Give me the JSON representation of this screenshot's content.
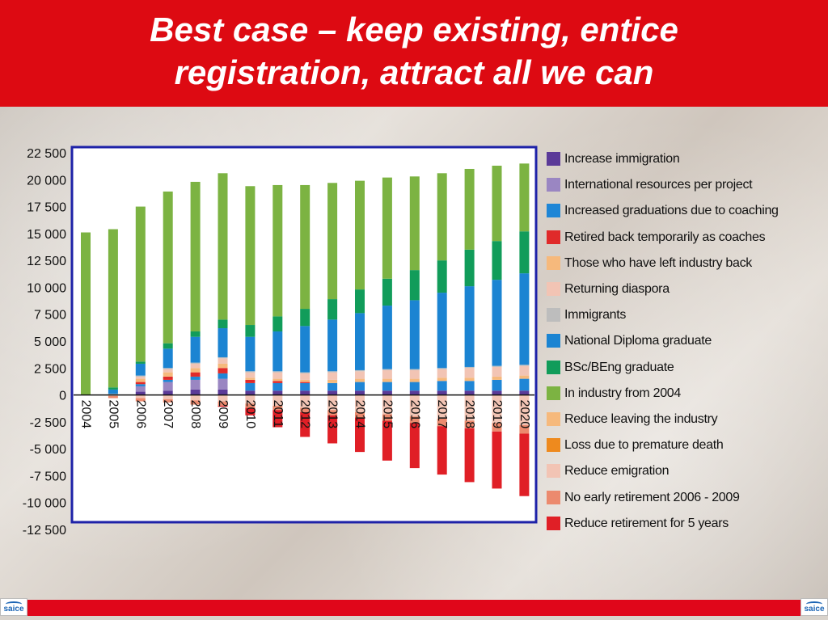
{
  "title": "Best case – keep existing, entice\nregistration, attract all we can",
  "logo_text": "saice",
  "chart_data": {
    "type": "bar",
    "stacked": true,
    "categories": [
      "2004",
      "2005",
      "2006",
      "2007",
      "2008",
      "2009",
      "2010",
      "2011",
      "2012",
      "2013",
      "2014",
      "2015",
      "2016",
      "2017",
      "2018",
      "2019",
      "2020"
    ],
    "ylim": [
      -12500,
      22500
    ],
    "yticks": [
      22500,
      20000,
      17500,
      15000,
      12500,
      10000,
      7500,
      5000,
      2500,
      0,
      -2500,
      -5000,
      -7500,
      -10000,
      -12500
    ],
    "ytick_labels": [
      "22 500",
      "20 000",
      "17 500",
      "15 000",
      "12 500",
      "10 000",
      "7 500",
      "5 000",
      "2 500",
      "0",
      "-2 500",
      "-5 000",
      "-7 500",
      "-10 000",
      "-12 500"
    ],
    "grid": false,
    "legend_position": "right",
    "series": [
      {
        "name": "Increase immigration",
        "color": "#5b3a98",
        "sign": "positive",
        "values": [
          0,
          0,
          300,
          400,
          500,
          500,
          400,
          400,
          400,
          400,
          400,
          400,
          400,
          400,
          400,
          400,
          400
        ]
      },
      {
        "name": "International resources per project",
        "color": "#9a86c2",
        "sign": "positive",
        "values": [
          0,
          0,
          500,
          800,
          900,
          1000,
          0,
          0,
          0,
          0,
          0,
          0,
          0,
          0,
          0,
          0,
          0
        ]
      },
      {
        "name": "Increased graduations due to coaching",
        "color": "#1f86d6",
        "sign": "positive",
        "values": [
          0,
          0,
          200,
          200,
          300,
          500,
          700,
          700,
          700,
          700,
          800,
          800,
          800,
          900,
          900,
          1000,
          1100
        ]
      },
      {
        "name": "Retired back temporarily as coaches",
        "color": "#e02a2a",
        "sign": "positive",
        "values": [
          0,
          0,
          200,
          300,
          400,
          500,
          300,
          200,
          100,
          0,
          0,
          0,
          0,
          0,
          0,
          0,
          0
        ]
      },
      {
        "name": "Those who have left industry back",
        "color": "#f6b97c",
        "sign": "positive",
        "values": [
          0,
          0,
          300,
          400,
          400,
          400,
          200,
          200,
          200,
          300,
          300,
          300,
          300,
          300,
          300,
          300,
          300
        ]
      },
      {
        "name": "Returning diaspora",
        "color": "#f2c4b4",
        "sign": "positive",
        "values": [
          0,
          0,
          200,
          300,
          400,
          500,
          500,
          600,
          600,
          700,
          700,
          800,
          800,
          800,
          900,
          900,
          900
        ]
      },
      {
        "name": "Immigrants",
        "color": "#bdbdbd",
        "sign": "positive",
        "values": [
          0,
          100,
          100,
          100,
          100,
          100,
          100,
          100,
          100,
          100,
          100,
          100,
          100,
          100,
          100,
          100,
          100
        ]
      },
      {
        "name": "National Diploma graduate",
        "color": "#1b84d2",
        "sign": "positive",
        "values": [
          0,
          400,
          1100,
          1800,
          2400,
          2700,
          3200,
          3700,
          4300,
          4800,
          5300,
          5900,
          6400,
          7000,
          7500,
          8000,
          8500
        ]
      },
      {
        "name": "BSc/BEng graduate",
        "color": "#119c5a",
        "sign": "positive",
        "values": [
          0,
          200,
          200,
          500,
          500,
          800,
          1100,
          1400,
          1600,
          1900,
          2200,
          2500,
          2800,
          3000,
          3400,
          3600,
          3900
        ]
      },
      {
        "name": "In industry from 2004",
        "color": "#7cb342",
        "sign": "positive",
        "values": [
          15100,
          14700,
          14400,
          14100,
          13900,
          13600,
          12900,
          12200,
          11500,
          10800,
          10100,
          9400,
          8700,
          8100,
          7500,
          7000,
          6300
        ]
      },
      {
        "name": "Reduce leaving the industry",
        "color": "#f6b97c",
        "sign": "negative",
        "values": [
          0,
          0,
          0,
          0,
          0,
          0,
          0,
          0,
          0,
          0,
          0,
          0,
          0,
          0,
          0,
          0,
          0
        ]
      },
      {
        "name": "Loss due to premature death",
        "color": "#ee8a1e",
        "sign": "negative",
        "values": [
          0,
          0,
          0,
          0,
          0,
          0,
          0,
          0,
          0,
          0,
          0,
          0,
          0,
          0,
          0,
          0,
          0
        ]
      },
      {
        "name": "Reduce emigration",
        "color": "#f2c4b4",
        "sign": "negative",
        "values": [
          0,
          -100,
          -300,
          -400,
          -500,
          -600,
          -800,
          -1000,
          -1200,
          -1400,
          -1600,
          -1800,
          -2000,
          -2200,
          -2400,
          -2600,
          -2800
        ]
      },
      {
        "name": "No early retirement 2006 - 2009",
        "color": "#ec8a6e",
        "sign": "negative",
        "values": [
          0,
          -200,
          -300,
          -300,
          -400,
          -400,
          -400,
          -400,
          -400,
          -500,
          -500,
          -600,
          -600,
          -700,
          -700,
          -800,
          -800
        ]
      },
      {
        "name": "Reduce retirement for 5 years",
        "color": "#e01f26",
        "sign": "negative",
        "values": [
          0,
          0,
          0,
          0,
          0,
          -100,
          -700,
          -1600,
          -2300,
          -2600,
          -3200,
          -3700,
          -4200,
          -4500,
          -5000,
          -5300,
          -5800
        ]
      }
    ]
  }
}
